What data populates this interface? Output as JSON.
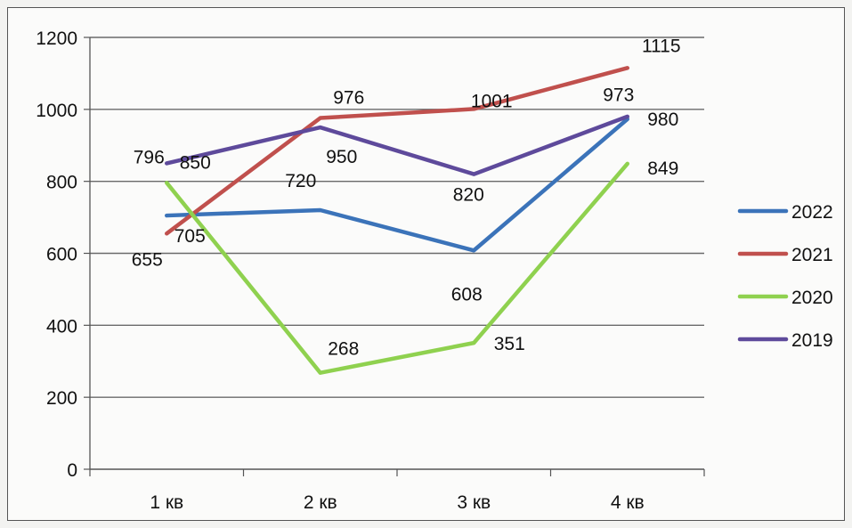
{
  "chart_data": {
    "type": "line",
    "title": "",
    "xlabel": "",
    "ylabel": "",
    "categories": [
      "1 кв",
      "2 кв",
      "3 кв",
      "4 кв"
    ],
    "ylim": [
      0,
      1200
    ],
    "yticks": [
      0,
      200,
      400,
      600,
      800,
      1000,
      1200
    ],
    "grid": true,
    "legend_position": "right",
    "series": [
      {
        "name": "2022",
        "values": [
          705,
          720,
          608,
          973
        ],
        "color": "#3b73b9"
      },
      {
        "name": "2021",
        "values": [
          655,
          976,
          1001,
          1115
        ],
        "color": "#c0504d"
      },
      {
        "name": "2020",
        "values": [
          796,
          268,
          351,
          849
        ],
        "color": "#8fd14f"
      },
      {
        "name": "2019",
        "values": [
          850,
          950,
          820,
          980
        ],
        "color": "#5e4a9b"
      }
    ]
  }
}
